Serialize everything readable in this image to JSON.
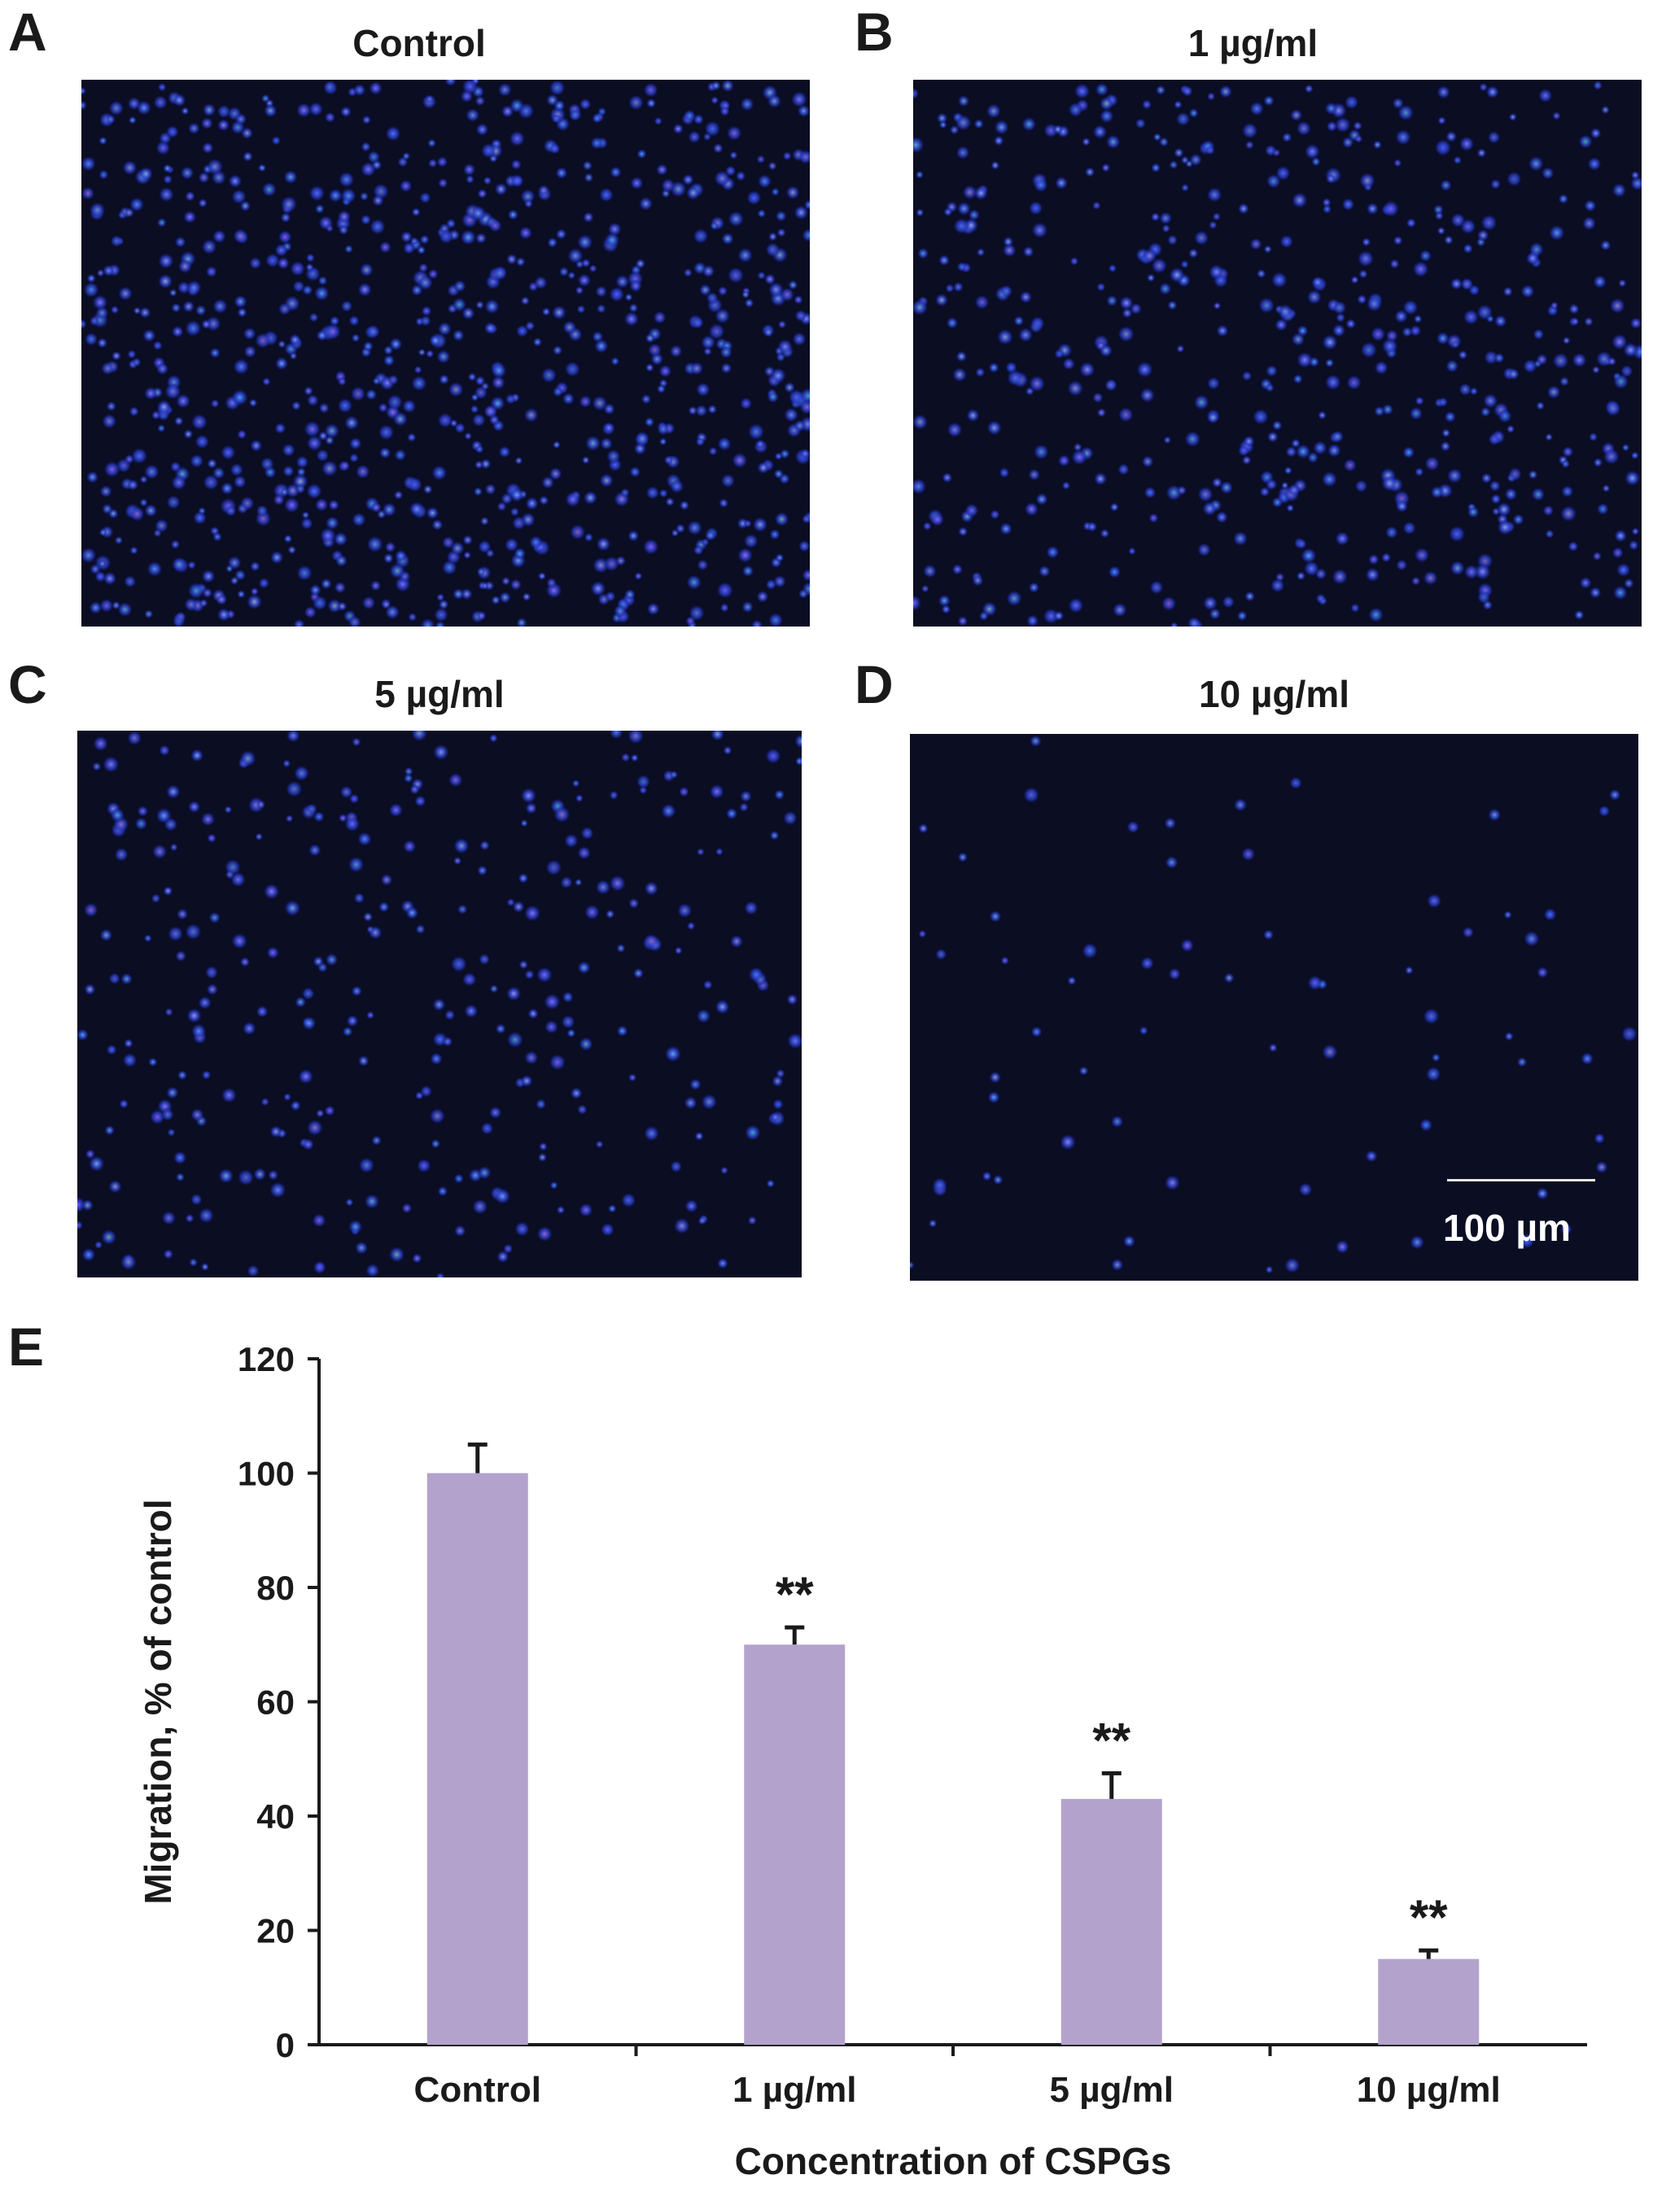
{
  "panels": [
    {
      "letter": "A",
      "title": "Control"
    },
    {
      "letter": "B",
      "title": "1 µg/ml"
    },
    {
      "letter": "C",
      "title": "5 µg/ml"
    },
    {
      "letter": "D",
      "title": "10 µg/ml"
    }
  ],
  "scale_bar": {
    "label": "100 µm"
  },
  "chart_panel": {
    "letter": "E"
  },
  "colors": {
    "bar": "#b3a3cc",
    "axis": "#1a1a1a",
    "micrograph_bg": "#0b0d22",
    "nuclei": "#2f50e0"
  },
  "chart_data": {
    "type": "bar",
    "categories": [
      "Control",
      "1 µg/ml",
      "5 µg/ml",
      "10 µg/ml"
    ],
    "values": [
      100,
      70,
      43,
      15
    ],
    "errors": [
      5,
      3,
      4.5,
      1.5
    ],
    "annotations": [
      "",
      "**",
      "**",
      "**"
    ],
    "title": "",
    "xlabel": "Concentration of CSPGs",
    "ylabel": "Migration, % of control",
    "ylim": [
      0,
      120
    ],
    "yticks": [
      "0",
      "20",
      "40",
      "60",
      "80",
      "100",
      "120"
    ],
    "grid": false,
    "legend": "none"
  }
}
